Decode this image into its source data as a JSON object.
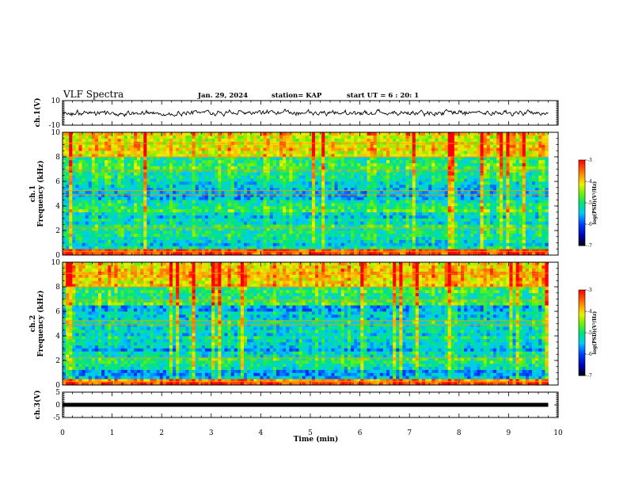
{
  "header": {
    "title": "VLF Spectra",
    "date": "Jan. 29, 2024",
    "station": "station= KAP",
    "start": "start UT =   6 : 20: 1"
  },
  "chart_data": [
    {
      "type": "line",
      "ylabel": "ch.1(V)",
      "ylim": [
        -10,
        10
      ],
      "yticks": [
        "10",
        "-10"
      ],
      "xlim": [
        0,
        10
      ],
      "x_extent": 9.8,
      "trace_level": 0.0,
      "trace_amplitude": 3.5
    },
    {
      "type": "heatmap",
      "ylabel": "ch.1\nFrequency (kHz)",
      "ylim": [
        0,
        10
      ],
      "yticks": [
        "0",
        "2",
        "4",
        "6",
        "8",
        "10"
      ],
      "xlim": [
        0,
        10
      ],
      "x_extent": 9.8,
      "colorbar": {
        "label": "log(PSD)(V²/Hz)",
        "range": [
          -7,
          -3
        ],
        "ticks": [
          "-3",
          "-4",
          "-5",
          "-6",
          "-7"
        ]
      },
      "bands": [
        {
          "from": 0.0,
          "to": 0.5,
          "level": -3.5
        },
        {
          "from": 0.5,
          "to": 1.5,
          "level": -5.4
        },
        {
          "from": 1.5,
          "to": 2.5,
          "level": -5.0
        },
        {
          "from": 2.5,
          "to": 3.5,
          "level": -5.3
        },
        {
          "from": 3.5,
          "to": 4.5,
          "level": -5.0
        },
        {
          "from": 4.5,
          "to": 5.5,
          "level": -5.5
        },
        {
          "from": 5.5,
          "to": 6.5,
          "level": -5.3
        },
        {
          "from": 6.5,
          "to": 8.0,
          "level": -4.9
        },
        {
          "from": 8.0,
          "to": 10.0,
          "level": -4.2
        }
      ]
    },
    {
      "type": "heatmap",
      "ylabel": "ch.2\nFrequency (kHz)",
      "ylim": [
        0,
        10
      ],
      "yticks": [
        "0",
        "2",
        "4",
        "6",
        "8",
        "10"
      ],
      "xlim": [
        0,
        10
      ],
      "x_extent": 9.8,
      "colorbar": {
        "label": "log(PSD)(V²/Hz)",
        "range": [
          -7,
          -3
        ],
        "ticks": [
          "-3",
          "-4",
          "-5",
          "-6",
          "-7"
        ]
      },
      "bands": [
        {
          "from": 0.0,
          "to": 0.5,
          "level": -3.6
        },
        {
          "from": 0.5,
          "to": 1.5,
          "level": -5.5
        },
        {
          "from": 1.5,
          "to": 2.5,
          "level": -5.1
        },
        {
          "from": 2.5,
          "to": 3.5,
          "level": -5.5
        },
        {
          "from": 3.5,
          "to": 4.5,
          "level": -5.3
        },
        {
          "from": 4.5,
          "to": 5.5,
          "level": -5.2
        },
        {
          "from": 5.5,
          "to": 6.5,
          "level": -5.5
        },
        {
          "from": 6.5,
          "to": 8.0,
          "level": -4.8
        },
        {
          "from": 8.0,
          "to": 10.0,
          "level": -4.1
        }
      ]
    },
    {
      "type": "line",
      "ylabel": "ch.3(V)",
      "ylim": [
        -5,
        5
      ],
      "yticks": [
        "5",
        "0",
        "-5"
      ],
      "xlim": [
        0,
        10
      ],
      "x_extent": 9.8,
      "trace_level": 0.0,
      "trace_amplitude": 0.4
    }
  ],
  "x_axis": {
    "label": "Time (min)",
    "ticks": [
      "0",
      "1",
      "2",
      "3",
      "4",
      "5",
      "6",
      "7",
      "8",
      "9",
      "10"
    ]
  }
}
